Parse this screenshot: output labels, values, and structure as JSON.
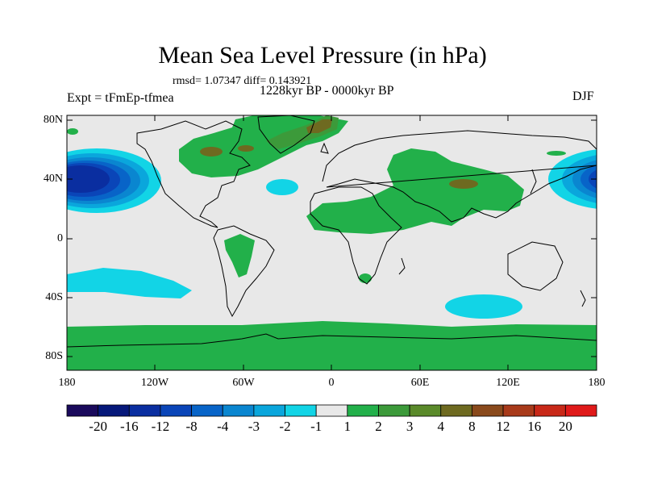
{
  "title": "Mean Sea Level Pressure (in hPa)",
  "stats": "rmsd= 1.07347 diff= 0.143921",
  "period": "1228kyr BP - 0000kyr BP",
  "experiment": "Expt = tFmEp-tfmea",
  "season": "DJF",
  "lat_labels": [
    "80N",
    "40N",
    "0",
    "40S",
    "80S"
  ],
  "lon_labels": [
    "180",
    "120W",
    "60W",
    "0",
    "60E",
    "120E",
    "180"
  ],
  "colorbar": {
    "labels": [
      "-20",
      "-16",
      "-12",
      "-8",
      "-4",
      "-3",
      "-2",
      "-1",
      "1",
      "2",
      "3",
      "4",
      "8",
      "12",
      "16",
      "20"
    ],
    "colors": [
      "#1a0a5c",
      "#06187a",
      "#0a2ea0",
      "#0a45b8",
      "#0864c8",
      "#0a86d0",
      "#0aa6dc",
      "#12d4e6",
      "#e8e8e8",
      "#22b04a",
      "#3c9a3a",
      "#5a8a2a",
      "#6e6a20",
      "#8a4a1c",
      "#a83a1a",
      "#c82818",
      "#e01a1a"
    ]
  },
  "colors": {
    "background": "#e8e8e8",
    "coastline": "#000000"
  }
}
